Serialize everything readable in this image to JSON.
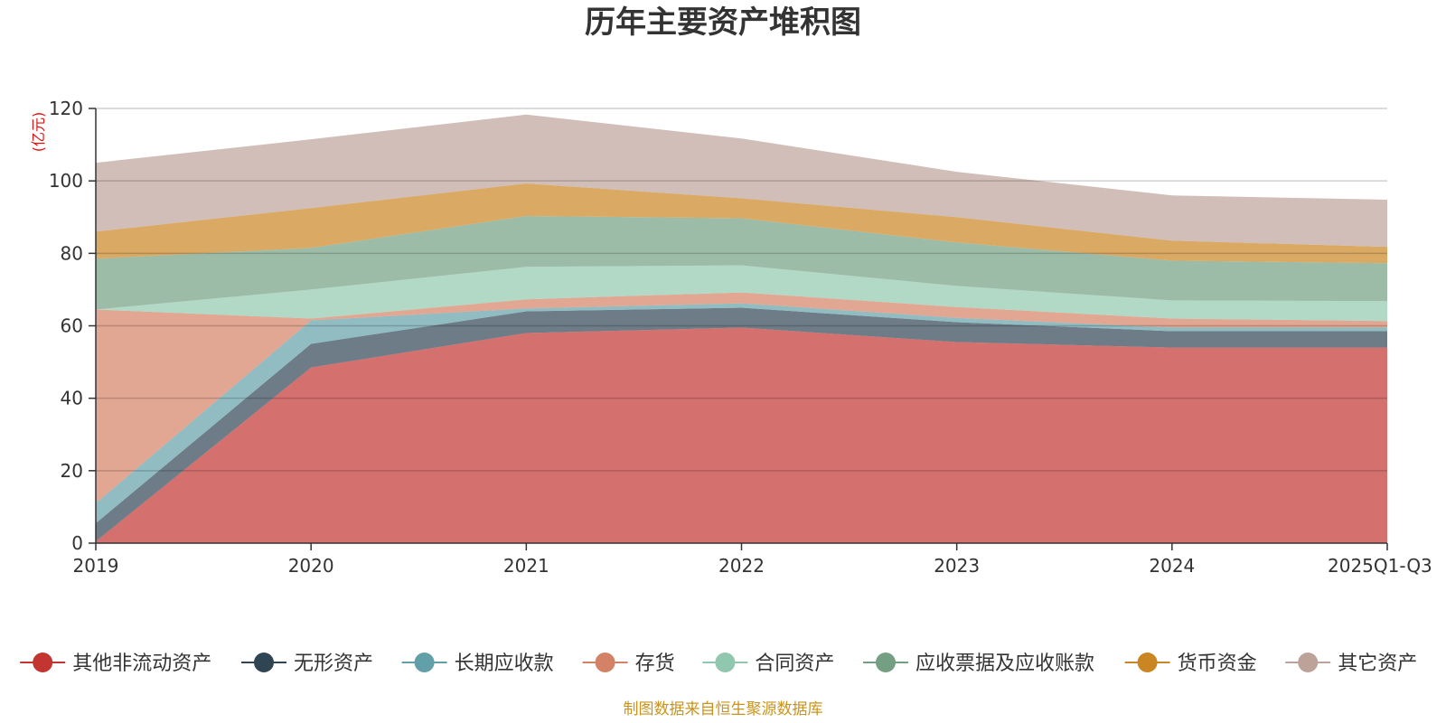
{
  "chart_data": {
    "type": "area",
    "stacked": true,
    "title": "历年主要资产堆积图",
    "ylabel": "(亿元)",
    "ylim": [
      0,
      120
    ],
    "yticks": [
      0,
      20,
      40,
      60,
      80,
      100,
      120
    ],
    "categories": [
      "2019",
      "2020",
      "2021",
      "2022",
      "2023",
      "2024",
      "2025Q1-Q3"
    ],
    "grid": true,
    "legend_position": "bottom",
    "source": "制图数据来自恒生聚源数据库",
    "series": [
      {
        "name": "其他非流动资产",
        "color": "#c23531",
        "values": [
          0.5,
          48.5,
          58.0,
          59.5,
          55.5,
          54.0,
          54.0
        ]
      },
      {
        "name": "无形资产",
        "color": "#2f4554",
        "values": [
          5.0,
          6.5,
          6.0,
          5.5,
          5.5,
          4.5,
          4.5
        ]
      },
      {
        "name": "长期应收款",
        "color": "#61a0a8",
        "values": [
          5.5,
          6.5,
          0.8,
          1.2,
          1.2,
          1.0,
          1.0
        ]
      },
      {
        "name": "存货",
        "color": "#d48265",
        "values": [
          53.5,
          0.5,
          2.5,
          3.0,
          3.0,
          2.5,
          1.8
        ]
      },
      {
        "name": "合同资产",
        "color": "#91c7ae",
        "values": [
          0.0,
          8.0,
          9.0,
          7.5,
          5.8,
          5.0,
          5.5
        ]
      },
      {
        "name": "应收票据及应收账款",
        "color": "#749f83",
        "values": [
          14.0,
          11.5,
          14.0,
          13.0,
          12.0,
          11.0,
          10.5
        ]
      },
      {
        "name": "货币资金",
        "color": "#ca8622",
        "values": [
          7.5,
          11.0,
          9.0,
          5.5,
          7.0,
          5.5,
          4.5
        ]
      },
      {
        "name": "其它资产",
        "color": "#bda29a",
        "values": [
          19.0,
          19.0,
          19.0,
          16.5,
          12.5,
          12.5,
          13.0
        ]
      }
    ]
  }
}
